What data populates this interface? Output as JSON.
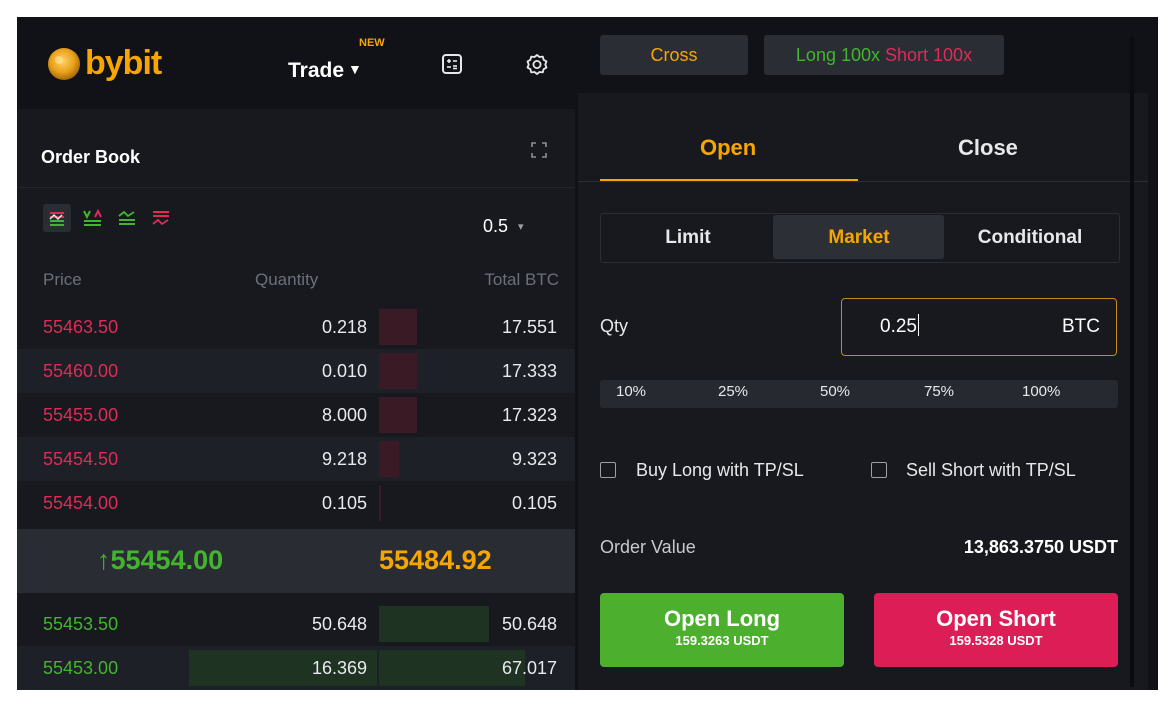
{
  "header": {
    "logo_text": "bybit",
    "trade_label": "Trade",
    "trade_caret": "▼",
    "new_badge": "NEW",
    "calculator_icon": "calculator-icon",
    "settings_icon": "gear-icon"
  },
  "order_book": {
    "title": "Order Book",
    "depth_value": "0.5",
    "depth_dropdown": "▾",
    "columns": {
      "price": "Price",
      "quantity": "Quantity",
      "total": "Total BTC"
    },
    "asks": [
      {
        "price": "55463.50",
        "qty": "0.218",
        "total": "17.551"
      },
      {
        "price": "55460.00",
        "qty": "0.010",
        "total": "17.333"
      },
      {
        "price": "55455.00",
        "qty": "8.000",
        "total": "17.323"
      },
      {
        "price": "55454.50",
        "qty": "9.218",
        "total": "9.323"
      },
      {
        "price": "55454.00",
        "qty": "0.105",
        "total": "0.105"
      }
    ],
    "last_price_arrow": "↑",
    "last_price": "55454.00",
    "mark_price": "55484.92",
    "bids": [
      {
        "price": "55453.50",
        "qty": "50.648",
        "total": "50.648"
      },
      {
        "price": "55453.00",
        "qty": "16.369",
        "total": "67.017"
      }
    ],
    "colors": {
      "ask": "#de2b57",
      "bid": "#42b52e",
      "accent": "#f7a600"
    }
  },
  "order_form": {
    "margin_mode": "Cross",
    "leverage_long": "Long 100x",
    "leverage_short": "Short 100x",
    "tabs": {
      "open": "Open",
      "close": "Close"
    },
    "order_types": {
      "limit": "Limit",
      "market": "Market",
      "conditional": "Conditional"
    },
    "qty_label": "Qty",
    "qty_value": "0.25",
    "qty_unit": "BTC",
    "percentages": [
      "10%",
      "25%",
      "50%",
      "75%",
      "100%"
    ],
    "buy_tpsl": "Buy Long with TP/SL",
    "sell_tpsl": "Sell Short with TP/SL",
    "order_value_label": "Order Value",
    "order_value": "13,863.3750 USDT",
    "open_long": {
      "label": "Open Long",
      "cost": "159.3263 USDT"
    },
    "open_short": {
      "label": "Open Short",
      "cost": "159.5328 USDT"
    }
  }
}
